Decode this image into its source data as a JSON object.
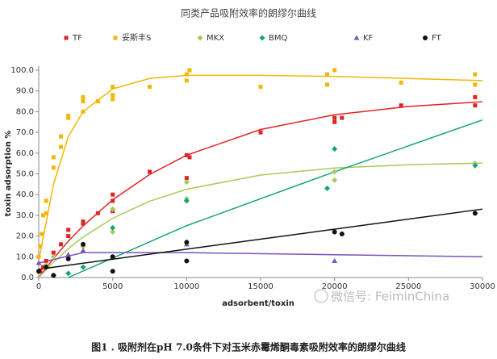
{
  "chart_data": {
    "type": "scatter",
    "title": "同类产品吸附效率的朗缪尔曲线",
    "xlabel": "adsorbent/toxin",
    "ylabel": "toxin adsorption %",
    "caption": "图1 . 吸附剂在pH 7.0条件下对玉米赤霉烯酮毒素吸附效率的朗缪尔曲线",
    "watermark": "微信号: FeiminChina",
    "legend_position": "top",
    "xlim": [
      0,
      30000
    ],
    "xticks": [
      0,
      5000,
      10000,
      15000,
      20000,
      25000,
      30000
    ],
    "ylim": [
      0,
      100
    ],
    "yticks": [
      {
        "value": 0,
        "label": "0.0"
      },
      {
        "value": 10,
        "label": "10.0"
      },
      {
        "value": 20,
        "label": "20.0"
      },
      {
        "value": 30,
        "label": "30.0"
      },
      {
        "value": 40,
        "label": "40.0"
      },
      {
        "value": 50,
        "label": "50.0"
      },
      {
        "value": 60,
        "label": "60.0"
      },
      {
        "value": 70,
        "label": "70.0"
      },
      {
        "value": 80,
        "label": "80.0"
      },
      {
        "value": 90,
        "label": "90.0"
      },
      {
        "value": 100,
        "label": "100.0"
      }
    ],
    "series": [
      {
        "name": "TF",
        "color": "#e02424",
        "marker": "square",
        "x": [
          100,
          300,
          500,
          1000,
          1500,
          2000,
          2000,
          3000,
          3000,
          4000,
          5000,
          5000,
          5000,
          7500,
          10000,
          10000,
          10200,
          15000,
          20000,
          20000,
          20500,
          24500,
          29500,
          29500
        ],
        "y": [
          3,
          5,
          8,
          12,
          16,
          20,
          23,
          27,
          26,
          31,
          32,
          37,
          40,
          51,
          59,
          48,
          58,
          70,
          77,
          75,
          77,
          83,
          87,
          83
        ],
        "fit": {
          "x": [
            0,
            1000,
            2000,
            3000,
            5000,
            7500,
            10000,
            15000,
            20000,
            25000,
            30000
          ],
          "y": [
            0,
            9.2,
            17.5,
            24.9,
            37.5,
            49.7,
            59,
            71.4,
            78.5,
            82.5,
            84.8
          ]
        }
      },
      {
        "name": "妥斯丰S",
        "color": "#f2b705",
        "marker": "square",
        "x": [
          0,
          100,
          200,
          300,
          500,
          500,
          1000,
          1000,
          1500,
          1500,
          2000,
          2000,
          3000,
          3000,
          3000,
          4000,
          5000,
          5000,
          5000,
          7500,
          10000,
          10000,
          10200,
          15000,
          19500,
          19500,
          20000,
          24500,
          29500,
          29500
        ],
        "y": [
          10,
          15,
          21,
          30,
          31,
          37,
          53,
          58,
          63,
          68,
          77,
          78,
          80,
          85,
          87,
          85,
          86,
          88,
          92,
          92,
          95,
          98,
          100,
          92,
          93,
          98,
          100,
          94,
          98,
          93
        ],
        "fit": {
          "x": [
            0,
            1000,
            2000,
            3000,
            5000,
            7500,
            10000,
            15000,
            20000,
            25000,
            30000
          ],
          "y": [
            8,
            45,
            68,
            80,
            91,
            96,
            97.5,
            97.5,
            97,
            96,
            95
          ]
        }
      },
      {
        "name": "MKX",
        "color": "#a6cb5b",
        "marker": "diamond",
        "x": [
          500,
          1000,
          3000,
          5000,
          5000,
          10000,
          10000,
          20000,
          20000,
          29500
        ],
        "y": [
          6,
          10,
          15,
          33,
          22,
          46,
          38,
          51,
          47,
          55
        ],
        "fit": {
          "x": [
            0,
            1000,
            2000,
            3000,
            5000,
            7500,
            10000,
            15000,
            20000,
            25000,
            30000
          ],
          "y": [
            0,
            7.4,
            13.9,
            19.5,
            28.6,
            36.8,
            42.6,
            49.4,
            52.8,
            54.4,
            55.2
          ]
        }
      },
      {
        "name": "BMQ",
        "color": "#17a37a",
        "marker": "diamond",
        "x": [
          1000,
          2000,
          3000,
          5000,
          10000,
          19500,
          20000,
          29500
        ],
        "y": [
          1,
          2,
          5,
          24,
          37,
          43,
          62,
          54
        ],
        "fit": {
          "x": [
            2000,
            10000,
            20000,
            30000
          ],
          "y": [
            0,
            25,
            51,
            76
          ]
        }
      },
      {
        "name": "KF",
        "color": "#7b52c0",
        "marker": "triangle",
        "x": [
          0,
          2000,
          3000,
          10000,
          20000
        ],
        "y": [
          7,
          11,
          13,
          16,
          8
        ],
        "fit": {
          "x": [
            0,
            3000,
            10000,
            20000,
            30000
          ],
          "y": [
            7,
            12,
            12,
            11,
            10
          ]
        }
      },
      {
        "name": "FT",
        "color": "#111111",
        "marker": "circle",
        "x": [
          0,
          500,
          1000,
          2000,
          3000,
          5000,
          5000,
          10000,
          10000,
          20000,
          20500,
          29500
        ],
        "y": [
          3,
          5,
          1,
          9,
          16,
          3,
          10,
          8,
          17,
          22,
          21,
          31
        ],
        "fit": {
          "x": [
            0,
            30000
          ],
          "y": [
            4,
            33
          ]
        }
      }
    ]
  }
}
